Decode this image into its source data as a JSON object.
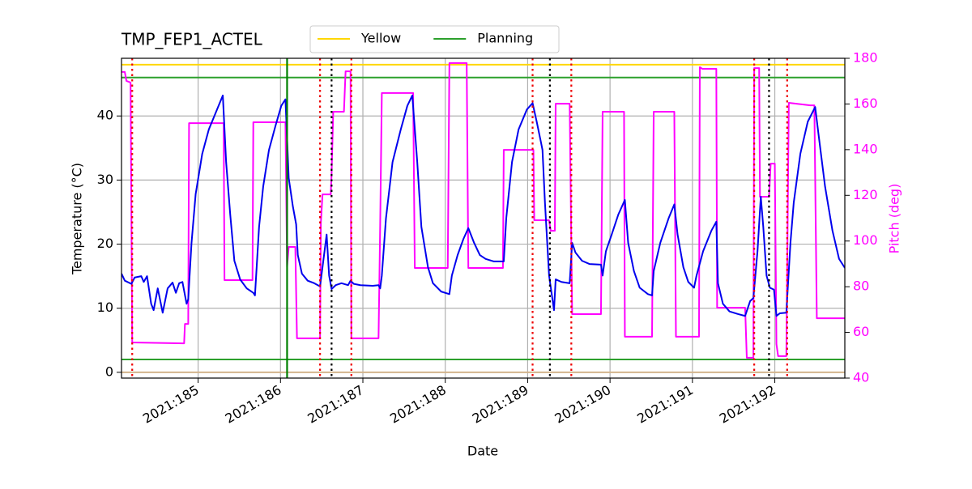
{
  "chart_data": {
    "type": "line",
    "title": "TMP_FEP1_ACTEL",
    "xlabel": "Date",
    "ylabel": "Temperature (°C)",
    "y2label": "Pitch (deg)",
    "y2color": "#ff00ff",
    "xlim": [
      184.07,
      192.85
    ],
    "ylim": [
      -0.9,
      49
    ],
    "y2lim": [
      40,
      180
    ],
    "xticks": [
      {
        "value": 185,
        "label": "2021:185"
      },
      {
        "value": 186,
        "label": "2021:186"
      },
      {
        "value": 187,
        "label": "2021:187"
      },
      {
        "value": 188,
        "label": "2021:188"
      },
      {
        "value": 189,
        "label": "2021:189"
      },
      {
        "value": 190,
        "label": "2021:190"
      },
      {
        "value": 191,
        "label": "2021:191"
      },
      {
        "value": 192,
        "label": "2021:192"
      }
    ],
    "yticks": [
      0,
      10,
      20,
      30,
      40
    ],
    "y2ticks": [
      40,
      60,
      80,
      100,
      120,
      140,
      160,
      180
    ],
    "grid": true,
    "legend": "top",
    "series": [
      {
        "color": "#0000ee",
        "x": [
          184.07,
          184.11,
          184.19,
          184.23,
          184.31,
          184.34,
          184.38,
          184.43,
          184.46,
          184.51,
          184.57,
          184.63,
          184.69,
          184.73,
          184.77,
          184.81,
          184.86,
          184.88,
          184.92,
          184.97,
          185.05,
          185.13,
          185.21,
          185.3,
          185.34,
          185.39,
          185.44,
          185.51,
          185.59,
          185.67,
          185.69,
          185.74,
          185.79,
          185.86,
          185.94,
          186.01,
          186.06,
          186.1,
          186.15,
          186.19,
          186.21,
          186.26,
          186.33,
          186.41,
          186.48,
          186.51,
          186.56,
          186.59,
          186.62,
          186.67,
          186.74,
          186.82,
          186.85,
          186.89,
          186.97,
          187.12,
          187.19,
          187.21,
          187.23,
          187.28,
          187.36,
          187.46,
          187.54,
          187.6,
          187.66,
          187.71,
          187.79,
          187.85,
          187.95,
          188.05,
          188.08,
          188.15,
          188.22,
          188.28,
          188.35,
          188.42,
          188.49,
          188.59,
          188.71,
          188.74,
          188.81,
          188.89,
          188.99,
          189.06,
          189.11,
          189.16,
          189.18,
          189.21,
          189.26,
          189.32,
          189.34,
          189.41,
          189.51,
          189.54,
          189.58,
          189.66,
          189.75,
          189.89,
          189.91,
          189.95,
          190.02,
          190.1,
          190.18,
          190.22,
          190.29,
          190.36,
          190.46,
          190.51,
          190.53,
          190.61,
          190.71,
          190.78,
          190.82,
          190.89,
          190.95,
          191.02,
          191.05,
          191.13,
          191.23,
          191.29,
          191.31,
          191.37,
          191.45,
          191.55,
          191.64,
          191.7,
          191.74,
          191.79,
          191.83,
          191.86,
          191.9,
          191.94,
          191.99,
          192.02,
          192.06,
          192.14,
          192.19,
          192.23,
          192.31,
          192.4,
          192.49,
          192.53,
          192.61,
          192.7,
          192.78,
          192.85
        ],
        "values": [
          15.4,
          14.3,
          13.8,
          14.8,
          15.0,
          14.1,
          15.0,
          10.7,
          9.7,
          13.1,
          9.3,
          13.1,
          14.0,
          12.4,
          13.9,
          14.1,
          10.7,
          11.4,
          20.2,
          27.8,
          34.1,
          37.9,
          40.4,
          43.2,
          32.8,
          24.6,
          17.4,
          14.5,
          13.1,
          12.4,
          12.0,
          22.7,
          29.0,
          34.7,
          38.5,
          41.6,
          42.6,
          30.3,
          25.9,
          23.1,
          18.3,
          15.4,
          14.3,
          13.9,
          13.4,
          16.4,
          21.5,
          15.1,
          13.0,
          13.6,
          13.9,
          13.6,
          14.3,
          13.8,
          13.6,
          13.5,
          13.6,
          13.1,
          15.1,
          24.0,
          32.8,
          37.9,
          41.6,
          43.2,
          32.8,
          22.7,
          16.4,
          13.9,
          12.6,
          12.2,
          15.1,
          18.3,
          20.8,
          22.5,
          20.2,
          18.3,
          17.7,
          17.3,
          17.3,
          24.0,
          32.8,
          37.9,
          41.0,
          42.0,
          39.1,
          36.0,
          34.7,
          26.5,
          15.1,
          9.7,
          14.5,
          14.1,
          13.9,
          20.2,
          18.7,
          17.4,
          16.9,
          16.8,
          15.1,
          18.9,
          21.5,
          24.6,
          26.9,
          20.2,
          15.8,
          13.2,
          12.2,
          12.0,
          15.8,
          20.2,
          24.0,
          26.2,
          21.5,
          16.4,
          14.1,
          13.2,
          15.1,
          18.9,
          22.1,
          23.5,
          13.9,
          10.7,
          9.5,
          9.1,
          8.8,
          11.1,
          11.6,
          18.9,
          27.4,
          22.7,
          15.1,
          13.2,
          12.9,
          8.8,
          9.2,
          9.3,
          20.2,
          26.5,
          34.1,
          39.1,
          41.4,
          37.2,
          29.0,
          22.1,
          17.7,
          16.3
        ]
      },
      {
        "color": "#ff00ff",
        "axis": "y2",
        "x": [
          184.07,
          184.11,
          184.13,
          184.18,
          184.2,
          184.83,
          184.84,
          184.88,
          184.89,
          185.31,
          185.32,
          185.66,
          185.67,
          186.06,
          186.08,
          186.1,
          186.18,
          186.2,
          186.48,
          186.49,
          186.51,
          186.61,
          186.62,
          186.64,
          186.77,
          186.79,
          186.85,
          186.86,
          187.19,
          187.21,
          187.23,
          187.61,
          187.63,
          188.03,
          188.05,
          188.26,
          188.28,
          188.7,
          188.71,
          189.07,
          189.08,
          189.26,
          189.28,
          189.33,
          189.34,
          189.51,
          189.54,
          189.89,
          189.91,
          190.17,
          190.18,
          190.51,
          190.53,
          190.78,
          190.8,
          191.08,
          191.09,
          191.12,
          191.29,
          191.3,
          191.64,
          191.66,
          191.74,
          191.75,
          191.81,
          191.82,
          191.93,
          191.95,
          192.0,
          192.02,
          192.04,
          192.14,
          192.17,
          192.43,
          192.48,
          192.51,
          192.85
        ],
        "values": [
          174.0,
          174.0,
          170.1,
          169.4,
          55.6,
          55.2,
          63.7,
          63.7,
          151.6,
          151.6,
          82.9,
          82.9,
          152.0,
          152.0,
          88.6,
          97.4,
          97.4,
          57.4,
          57.4,
          108.0,
          120.4,
          120.4,
          129.3,
          156.6,
          156.6,
          174.3,
          174.3,
          57.4,
          57.4,
          107.0,
          164.8,
          164.8,
          88.2,
          88.2,
          177.9,
          177.9,
          88.2,
          88.2,
          139.9,
          139.9,
          109.1,
          109.1,
          104.5,
          104.5,
          160.1,
          160.1,
          68.0,
          68.0,
          156.6,
          156.6,
          58.1,
          58.1,
          156.6,
          156.6,
          58.1,
          58.1,
          176.1,
          175.4,
          175.4,
          70.8,
          70.8,
          48.9,
          48.9,
          175.7,
          175.7,
          119.4,
          119.4,
          133.9,
          133.9,
          54.9,
          49.6,
          49.6,
          160.5,
          159.4,
          159.4,
          66.2,
          66.2
        ]
      }
    ],
    "hlines": [
      {
        "name": "Yellow",
        "color": "#ffd700",
        "value": 48
      },
      {
        "name": "Planning",
        "color": "#2ca02c",
        "value": 46
      },
      {
        "color": "#2ca02c",
        "value": 2
      },
      {
        "color": "#d2b48c",
        "value": 0
      }
    ],
    "vlines": [
      {
        "x": 186.08,
        "color": "#008000",
        "style": "solid"
      },
      {
        "x": 184.2,
        "color": "#ee0000",
        "style": "dotted"
      },
      {
        "x": 186.48,
        "color": "#ee0000",
        "style": "dotted"
      },
      {
        "x": 186.86,
        "color": "#ee0000",
        "style": "dotted"
      },
      {
        "x": 189.06,
        "color": "#ee0000",
        "style": "dotted"
      },
      {
        "x": 189.53,
        "color": "#ee0000",
        "style": "dotted"
      },
      {
        "x": 191.75,
        "color": "#ee0000",
        "style": "dotted"
      },
      {
        "x": 192.15,
        "color": "#ee0000",
        "style": "dotted"
      },
      {
        "x": 186.62,
        "color": "#000000",
        "style": "dotted"
      },
      {
        "x": 189.27,
        "color": "#000000",
        "style": "dotted"
      },
      {
        "x": 191.93,
        "color": "#000000",
        "style": "dotted"
      }
    ]
  }
}
